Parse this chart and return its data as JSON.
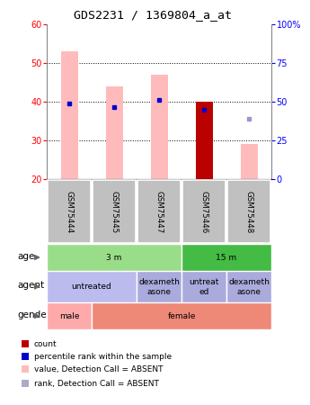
{
  "title": "GDS2231 / 1369804_a_at",
  "samples": [
    "GSM75444",
    "GSM75445",
    "GSM75447",
    "GSM75446",
    "GSM75448"
  ],
  "ylim_left": [
    20,
    60
  ],
  "ylim_right": [
    0,
    100
  ],
  "yticks_left": [
    20,
    30,
    40,
    50,
    60
  ],
  "yticks_right": [
    0,
    25,
    50,
    75,
    100
  ],
  "ytick_labels_right": [
    "0",
    "25",
    "50",
    "75",
    "100%"
  ],
  "bar_bottom": 20,
  "pink_bars": {
    "values": [
      53,
      44,
      47,
      null,
      29
    ],
    "color": "#ffbbbb"
  },
  "red_bars": {
    "values": [
      null,
      null,
      null,
      40,
      null
    ],
    "color": "#bb0000"
  },
  "blue_squares": {
    "y": [
      39.5,
      38.5,
      40.5,
      38.0,
      35.5
    ],
    "absent": [
      false,
      false,
      false,
      false,
      true
    ],
    "color_present": "#0000cc",
    "color_absent": "#9999cc"
  },
  "metadata": {
    "age": {
      "label": "age",
      "groups": [
        {
          "cols": [
            0,
            1,
            2
          ],
          "text": "3 m",
          "color": "#99dd88"
        },
        {
          "cols": [
            3,
            4
          ],
          "text": "15 m",
          "color": "#44bb44"
        }
      ]
    },
    "agent": {
      "label": "agent",
      "groups": [
        {
          "cols": [
            0,
            1
          ],
          "text": "untreated",
          "color": "#bbbbee"
        },
        {
          "cols": [
            2
          ],
          "text": "dexameth\nasone",
          "color": "#aaaadd"
        },
        {
          "cols": [
            3
          ],
          "text": "untreat\ned",
          "color": "#aaaadd"
        },
        {
          "cols": [
            4
          ],
          "text": "dexameth\nasone",
          "color": "#aaaadd"
        }
      ]
    },
    "gender": {
      "label": "gender",
      "groups": [
        {
          "cols": [
            0
          ],
          "text": "male",
          "color": "#ffaaaa"
        },
        {
          "cols": [
            1,
            2,
            3,
            4
          ],
          "text": "female",
          "color": "#ee8877"
        }
      ]
    }
  },
  "legend": [
    {
      "color": "#bb0000",
      "label": "count"
    },
    {
      "color": "#0000cc",
      "label": "percentile rank within the sample"
    },
    {
      "color": "#ffbbbb",
      "label": "value, Detection Call = ABSENT"
    },
    {
      "color": "#aaaacc",
      "label": "rank, Detection Call = ABSENT"
    }
  ]
}
